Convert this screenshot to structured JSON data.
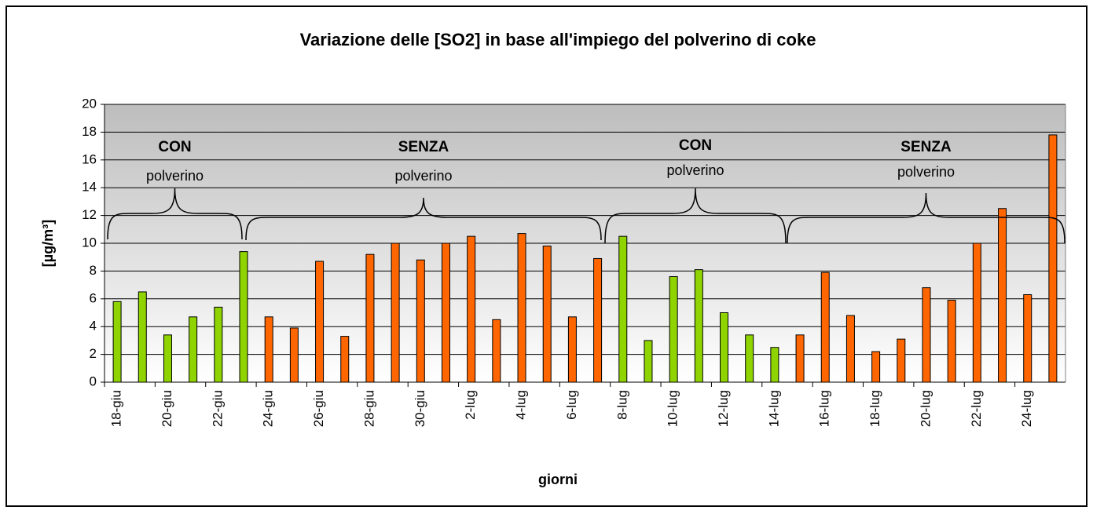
{
  "chart_data": {
    "type": "bar",
    "title": "Variazione delle [SO2] in base all'impiego del polverino di coke",
    "x_label": "giorni",
    "y_label": "[µg/m³]",
    "categories": [
      "18-giu",
      null,
      "20-giu",
      null,
      "22-giu",
      null,
      "24-giu",
      null,
      "26-giu",
      null,
      "28-giu",
      null,
      "30-giu",
      null,
      "2-lug",
      null,
      "4-lug",
      null,
      "6-lug",
      null,
      "8-lug",
      null,
      "10-lug",
      null,
      "12-lug",
      null,
      "14-lug",
      null,
      "16-lug",
      null,
      "18-lug",
      null,
      "20-lug",
      null,
      "22-lug",
      null,
      "24-lug",
      null
    ],
    "values": [
      5.8,
      6.5,
      3.4,
      4.7,
      5.4,
      9.4,
      4.7,
      3.9,
      8.7,
      3.3,
      9.2,
      10.0,
      8.8,
      10.0,
      10.5,
      4.5,
      10.7,
      9.8,
      4.7,
      8.9,
      10.5,
      3.0,
      7.6,
      8.1,
      5.0,
      3.4,
      2.5,
      3.4,
      7.9,
      4.8,
      2.2,
      3.1,
      6.8,
      5.9,
      10.0,
      12.5,
      6.3,
      17.8
    ],
    "colors": [
      "#8fd400",
      "#8fd400",
      "#8fd400",
      "#8fd400",
      "#8fd400",
      "#8fd400",
      "#ff6600",
      "#ff6600",
      "#ff6600",
      "#ff6600",
      "#ff6600",
      "#ff6600",
      "#ff6600",
      "#ff6600",
      "#ff6600",
      "#ff6600",
      "#ff6600",
      "#ff6600",
      "#ff6600",
      "#ff6600",
      "#8fd400",
      "#8fd400",
      "#8fd400",
      "#8fd400",
      "#8fd400",
      "#8fd400",
      "#8fd400",
      "#ff6600",
      "#ff6600",
      "#ff6600",
      "#ff6600",
      "#ff6600",
      "#ff6600",
      "#ff6600",
      "#ff6600",
      "#ff6600",
      "#ff6600",
      "#ff6600"
    ],
    "ylim": [
      0,
      20
    ],
    "yticks": [
      0,
      2,
      4,
      6,
      8,
      10,
      12,
      14,
      16,
      18,
      20
    ],
    "grid": true,
    "annotations": [
      {
        "label": "CON",
        "sub": "polverino"
      },
      {
        "label": "SENZA",
        "sub": "polverino"
      },
      {
        "label": "CON",
        "sub": "polverino"
      },
      {
        "label": "SENZA",
        "sub": "polverino"
      }
    ]
  }
}
